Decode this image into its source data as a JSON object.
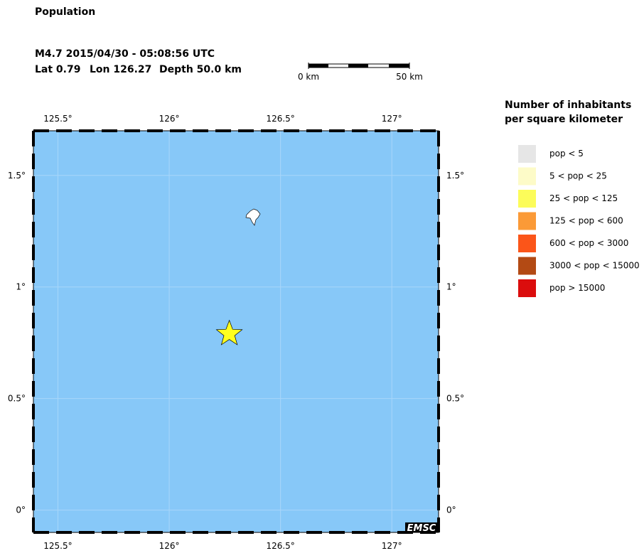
{
  "header": {
    "title": "Population",
    "event_line": "M4.7  2015/04/30 - 05:08:56 UTC",
    "lat_text": "Lat  0.79",
    "lon_text": "Lon 126.27",
    "depth_text": "Depth  50.0 km"
  },
  "scale_bar": {
    "start_label": "0 km",
    "end_label": "50 km"
  },
  "map": {
    "lonlim": [
      125.39,
      127.21
    ],
    "latlim": [
      -0.1,
      1.7
    ],
    "lonticks": [
      {
        "value": 125.5,
        "label": "125.5°"
      },
      {
        "value": 126,
        "label": "126°"
      },
      {
        "value": 126.5,
        "label": "126.5°"
      },
      {
        "value": 127,
        "label": "127°"
      }
    ],
    "latticks": [
      {
        "value": 0,
        "label": "0°"
      },
      {
        "value": 0.5,
        "label": "0.5°"
      },
      {
        "value": 1,
        "label": "1°"
      },
      {
        "value": 1.5,
        "label": "1.5°"
      }
    ],
    "sea_color": "#87c8f8",
    "epicenter": {
      "lat": 0.79,
      "lon": 126.27,
      "color": "#ffff1e"
    },
    "credit": "EMSC"
  },
  "legend": {
    "title_lines": [
      "Number of inhabitants",
      "per square kilometer"
    ],
    "items": [
      {
        "label": "pop < 5",
        "color": "#e6e6e6"
      },
      {
        "label": "5 < pop < 25",
        "color": "#fdfbc8"
      },
      {
        "label": "25 < pop < 125",
        "color": "#fcfc5a"
      },
      {
        "label": "125 < pop < 600",
        "color": "#fb9a37"
      },
      {
        "label": "600 < pop < 3000",
        "color": "#fb5519"
      },
      {
        "label": "3000 < pop < 15000",
        "color": "#b34a14"
      },
      {
        "label": "pop > 15000",
        "color": "#db0d0d"
      }
    ]
  }
}
